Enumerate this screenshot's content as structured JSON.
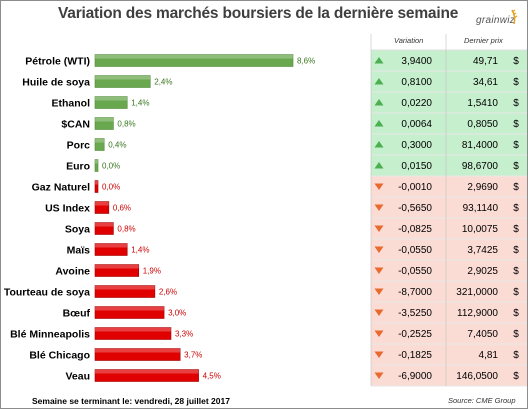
{
  "title": "Variation des marchés boursiers de la dernière semaine",
  "logo_text": "grainwiz",
  "table_headers": {
    "variation": "Variation",
    "price": "Dernier prix"
  },
  "footer": "Semaine se terminant le: vendredi, 28 juillet 2017",
  "source": "Source: CME Group",
  "colors": {
    "up_bar": "#6aa84f",
    "down_bar": "#e00000",
    "up_row": "#c6efce",
    "down_row": "#fbdcd5",
    "up_text": "#38761d",
    "down_text": "#cc0000",
    "up_icon": "#4caf50",
    "down_icon": "#e86a2e"
  },
  "chart_data": {
    "type": "bar",
    "orientation": "horizontal",
    "categories": [
      "Pétrole (WTI)",
      "Huile de soya",
      "Ethanol",
      "$CAN",
      "Porc",
      "Euro",
      "Gaz Naturel",
      "US Index",
      "Soya",
      "Maïs",
      "Avoine",
      "Tourteau de soya",
      "Bœuf",
      "Blé Minneapolis",
      "Blé Chicago",
      "Veau"
    ],
    "values": [
      8.6,
      2.4,
      1.4,
      0.8,
      0.4,
      0.0,
      0.0,
      0.6,
      0.8,
      1.4,
      1.9,
      2.6,
      3.0,
      3.3,
      3.7,
      4.5
    ],
    "value_labels": [
      "8,6%",
      "2,4%",
      "1,4%",
      "0,8%",
      "0,4%",
      "0,0%",
      "0,0%",
      "0,6%",
      "0,8%",
      "1,4%",
      "1,9%",
      "2,6%",
      "3,0%",
      "3,3%",
      "3,7%",
      "4,5%"
    ],
    "direction": [
      "up",
      "up",
      "up",
      "up",
      "up",
      "up",
      "down",
      "down",
      "down",
      "down",
      "down",
      "down",
      "down",
      "down",
      "down",
      "down"
    ],
    "variation": [
      "3,9400",
      "0,8100",
      "0,0220",
      "0,0064",
      "0,3000",
      "0,0150",
      "-0,0010",
      "-0,5650",
      "-0,0825",
      "-0,0550",
      "-0,0550",
      "-8,7000",
      "-3,5250",
      "-0,2525",
      "-0,1825",
      "-6,9000"
    ],
    "last_price": [
      "49,71",
      "34,61",
      "1,5410",
      "0,8050",
      "81,4000",
      "98,6700",
      "2,9690",
      "93,1140",
      "10,0075",
      "3,7425",
      "2,9025",
      "321,0000",
      "112,9000",
      "7,4050",
      "4,81",
      "146,0500"
    ],
    "currency": "$",
    "xlim": [
      0,
      8.6
    ]
  }
}
